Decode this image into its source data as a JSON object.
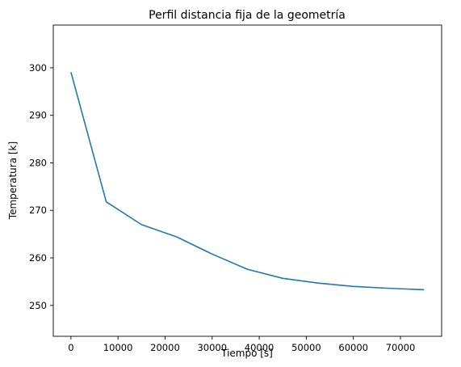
{
  "chart_data": {
    "type": "line",
    "title": "Perfil distancia fija de la geometría",
    "xlabel": "Tiempo [s]",
    "ylabel": "Temperatura [k]",
    "xlim": [
      -3750,
      78750
    ],
    "ylim": [
      243.5,
      309
    ],
    "xticks": [
      0,
      10000,
      20000,
      30000,
      40000,
      50000,
      60000,
      70000
    ],
    "yticks": [
      250,
      260,
      270,
      280,
      290,
      300
    ],
    "grid": false,
    "series": [
      {
        "color": "#1f77b4",
        "x": [
          0,
          7500,
          15000,
          22500,
          30000,
          37500,
          45000,
          52500,
          60000,
          67500,
          75000
        ],
        "y": [
          299.1,
          271.8,
          267.0,
          264.4,
          260.8,
          257.6,
          255.7,
          254.7,
          254.0,
          253.6,
          253.3
        ]
      }
    ]
  }
}
